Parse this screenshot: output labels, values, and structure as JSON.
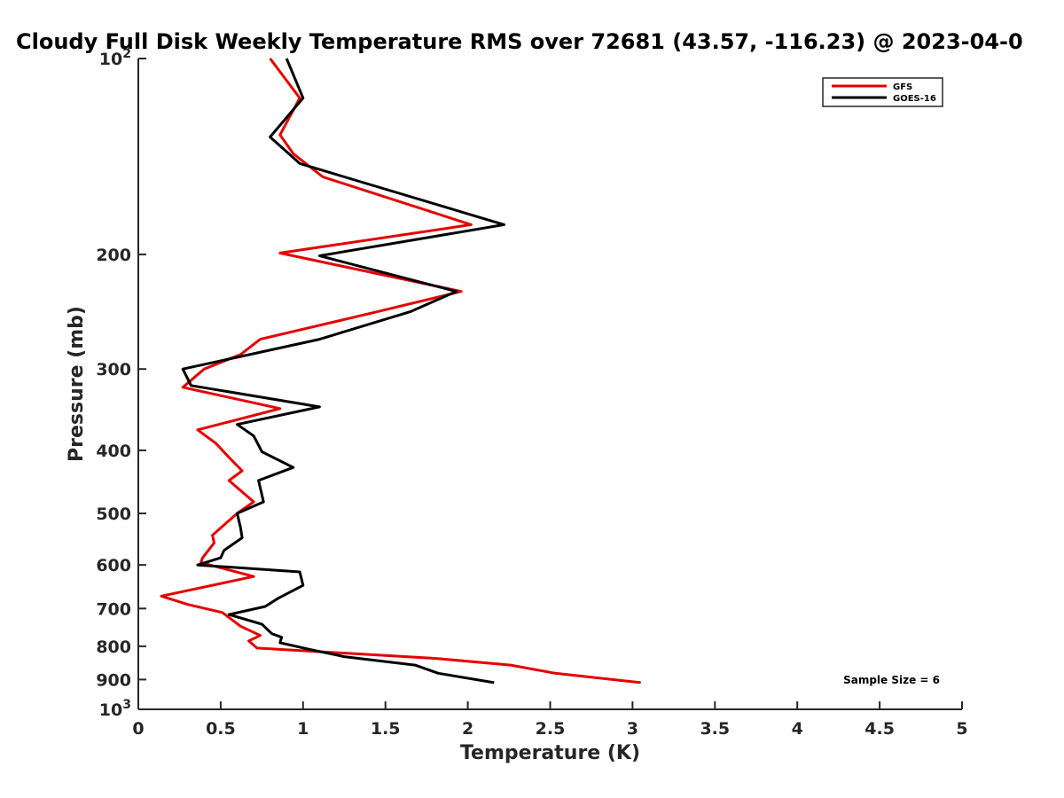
{
  "chart_data": {
    "type": "line",
    "title": "Cloudy Full Disk Weekly Temperature RMS over 72681 (43.57, -116.23) @ 2023-04-0",
    "xlabel": "Temperature (K)",
    "ylabel": "Pressure (mb)",
    "xlim": [
      0,
      5
    ],
    "ylim": [
      1000,
      100
    ],
    "y_scale": "log",
    "y_reversed": true,
    "x_ticks": [
      "0",
      "0.5",
      "1",
      "1.5",
      "2",
      "2.5",
      "3",
      "3.5",
      "4",
      "4.5",
      "5"
    ],
    "y_ticks": [
      {
        "value": 100,
        "label": "10",
        "exp": "2"
      },
      {
        "value": 200,
        "label": "200"
      },
      {
        "value": 300,
        "label": "300"
      },
      {
        "value": 400,
        "label": "400"
      },
      {
        "value": 500,
        "label": "500"
      },
      {
        "value": 600,
        "label": "600"
      },
      {
        "value": 700,
        "label": "700"
      },
      {
        "value": 800,
        "label": "800"
      },
      {
        "value": 900,
        "label": "900"
      },
      {
        "value": 1000,
        "label": "10",
        "exp": "3"
      }
    ],
    "grid": false,
    "legend_position": "top-right",
    "annotation": "Sample Size = 6",
    "series": [
      {
        "name": "GFS",
        "color": "#e60000",
        "points": [
          [
            0.8,
            100
          ],
          [
            0.98,
            115
          ],
          [
            0.86,
            131
          ],
          [
            0.94,
            140
          ],
          [
            1.12,
            152
          ],
          [
            2.02,
            180
          ],
          [
            0.86,
            199
          ],
          [
            1.96,
            228
          ],
          [
            1.45,
            245
          ],
          [
            0.74,
            270
          ],
          [
            0.62,
            285
          ],
          [
            0.4,
            300
          ],
          [
            0.27,
            320
          ],
          [
            0.86,
            345
          ],
          [
            0.36,
            372
          ],
          [
            0.47,
            390
          ],
          [
            0.55,
            410
          ],
          [
            0.63,
            430
          ],
          [
            0.55,
            445
          ],
          [
            0.7,
            480
          ],
          [
            0.6,
            500
          ],
          [
            0.45,
            540
          ],
          [
            0.46,
            555
          ],
          [
            0.39,
            585
          ],
          [
            0.38,
            595
          ],
          [
            0.7,
            625
          ],
          [
            0.14,
            670
          ],
          [
            0.3,
            690
          ],
          [
            0.51,
            710
          ],
          [
            0.62,
            745
          ],
          [
            0.74,
            770
          ],
          [
            0.67,
            785
          ],
          [
            0.72,
            805
          ],
          [
            1.8,
            835
          ],
          [
            2.26,
            855
          ],
          [
            2.53,
            880
          ],
          [
            3.05,
            910
          ]
        ]
      },
      {
        "name": "GOES-16",
        "color": "#000000",
        "points": [
          [
            0.9,
            100
          ],
          [
            1.0,
            115
          ],
          [
            0.8,
            132
          ],
          [
            0.98,
            145
          ],
          [
            1.25,
            152
          ],
          [
            2.22,
            180
          ],
          [
            1.1,
            201
          ],
          [
            1.93,
            228
          ],
          [
            1.65,
            245
          ],
          [
            1.1,
            270
          ],
          [
            0.62,
            287
          ],
          [
            0.27,
            300
          ],
          [
            0.32,
            318
          ],
          [
            1.1,
            343
          ],
          [
            0.6,
            365
          ],
          [
            0.7,
            380
          ],
          [
            0.75,
            402
          ],
          [
            0.94,
            425
          ],
          [
            0.73,
            445
          ],
          [
            0.76,
            480
          ],
          [
            0.6,
            500
          ],
          [
            0.62,
            525
          ],
          [
            0.63,
            545
          ],
          [
            0.52,
            570
          ],
          [
            0.5,
            585
          ],
          [
            0.36,
            600
          ],
          [
            0.98,
            615
          ],
          [
            1.0,
            645
          ],
          [
            0.85,
            675
          ],
          [
            0.77,
            695
          ],
          [
            0.55,
            715
          ],
          [
            0.75,
            740
          ],
          [
            0.81,
            765
          ],
          [
            0.87,
            775
          ],
          [
            0.86,
            790
          ],
          [
            1.05,
            810
          ],
          [
            1.25,
            830
          ],
          [
            1.68,
            855
          ],
          [
            1.82,
            880
          ],
          [
            2.16,
            910
          ]
        ]
      }
    ]
  }
}
